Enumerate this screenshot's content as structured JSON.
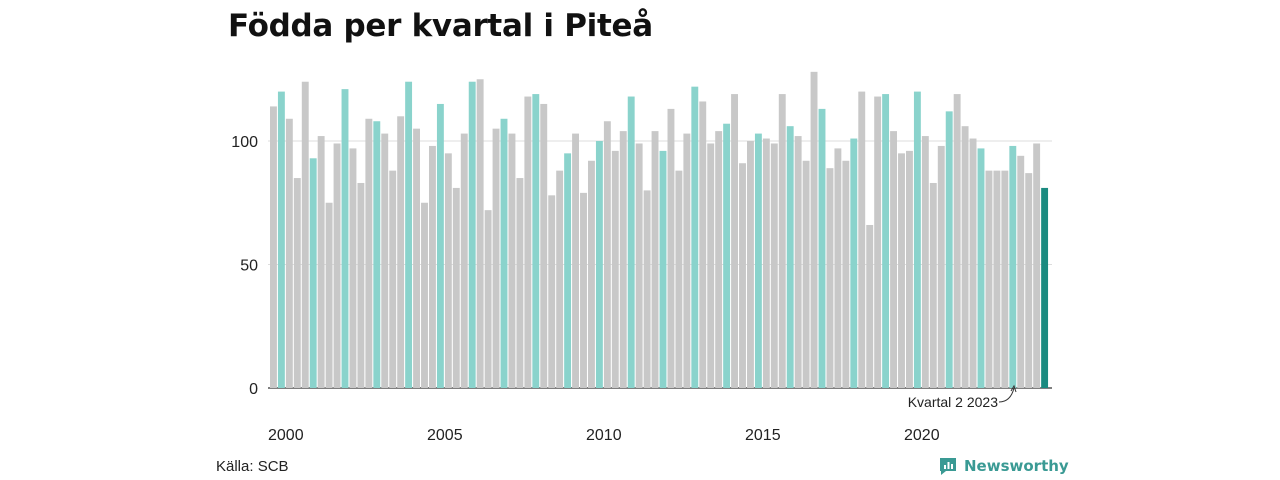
{
  "title": "Födda per kvartal i Piteå",
  "source": "Källa: SCB",
  "brand": "Newsworthy",
  "colors": {
    "q1": "#8ad3cc",
    "other": "#c8c8c8",
    "latest": "#1b8a80",
    "grid": "#dddddd",
    "brand": "#3a9a94"
  },
  "chart_data": {
    "type": "bar",
    "x_tick_labels": [
      "2000",
      "2005",
      "2010",
      "2015",
      "2020"
    ],
    "y_ticks": [
      0,
      50,
      100
    ],
    "ylim": [
      0,
      128
    ],
    "annotation": "Kvartal 2 2023",
    "series": [
      {
        "values": [
          114,
          120,
          109,
          85,
          124,
          93,
          102,
          75,
          99,
          121,
          97,
          83,
          109,
          108,
          103,
          88,
          110,
          124,
          105,
          75,
          98,
          115,
          95,
          81,
          103,
          124,
          125,
          72,
          105,
          109,
          103,
          85,
          118,
          119,
          115,
          78,
          88,
          95,
          103,
          79,
          92,
          100,
          108,
          96,
          104,
          118,
          99,
          80,
          104,
          96,
          113,
          88,
          103,
          122,
          116,
          99,
          104,
          107,
          119,
          91,
          100,
          103,
          101,
          99,
          119,
          106,
          102,
          92,
          128,
          113,
          89,
          97,
          92,
          101,
          120,
          66,
          118,
          119,
          104,
          95,
          96,
          120,
          102,
          83,
          98,
          112,
          119,
          106,
          101,
          97,
          88,
          88,
          88,
          98,
          94,
          87,
          99,
          81
        ]
      }
    ]
  }
}
